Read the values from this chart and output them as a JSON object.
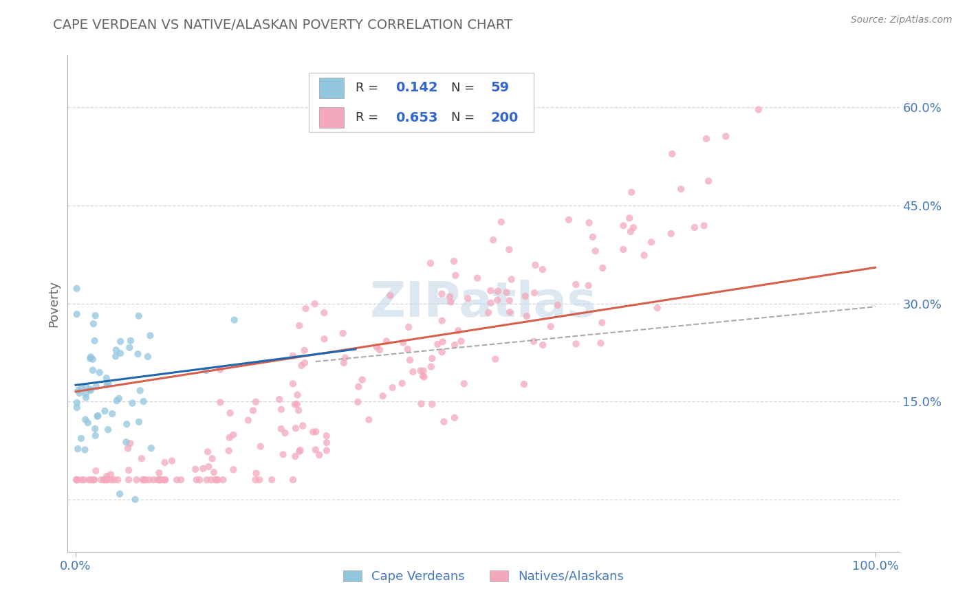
{
  "title": "CAPE VERDEAN VS NATIVE/ALASKAN POVERTY CORRELATION CHART",
  "source": "Source: ZipAtlas.com",
  "ylabel": "Poverty",
  "yticks": [
    0.0,
    0.15,
    0.3,
    0.45,
    0.6
  ],
  "ytick_labels": [
    "",
    "15.0%",
    "30.0%",
    "45.0%",
    "60.0%"
  ],
  "xlim": [
    -0.01,
    1.03
  ],
  "ylim": [
    -0.08,
    0.68
  ],
  "color_blue": "#92c5de",
  "color_blue_line": "#2166ac",
  "color_blue_dash": "#92c5de",
  "color_pink": "#f4a8bb",
  "color_pink_line": "#d6604d",
  "color_dashed_grey": "#aaaaaa",
  "background_color": "#ffffff",
  "grid_color": "#cccccc",
  "title_color": "#666666",
  "axis_label_color": "#4477bb",
  "legend_rn_color": "#3366cc",
  "n_blue": 59,
  "n_pink": 200,
  "R_blue": 0.142,
  "R_pink": 0.653,
  "watermark_color": "#c5d8ea",
  "watermark_alpha": 0.6
}
